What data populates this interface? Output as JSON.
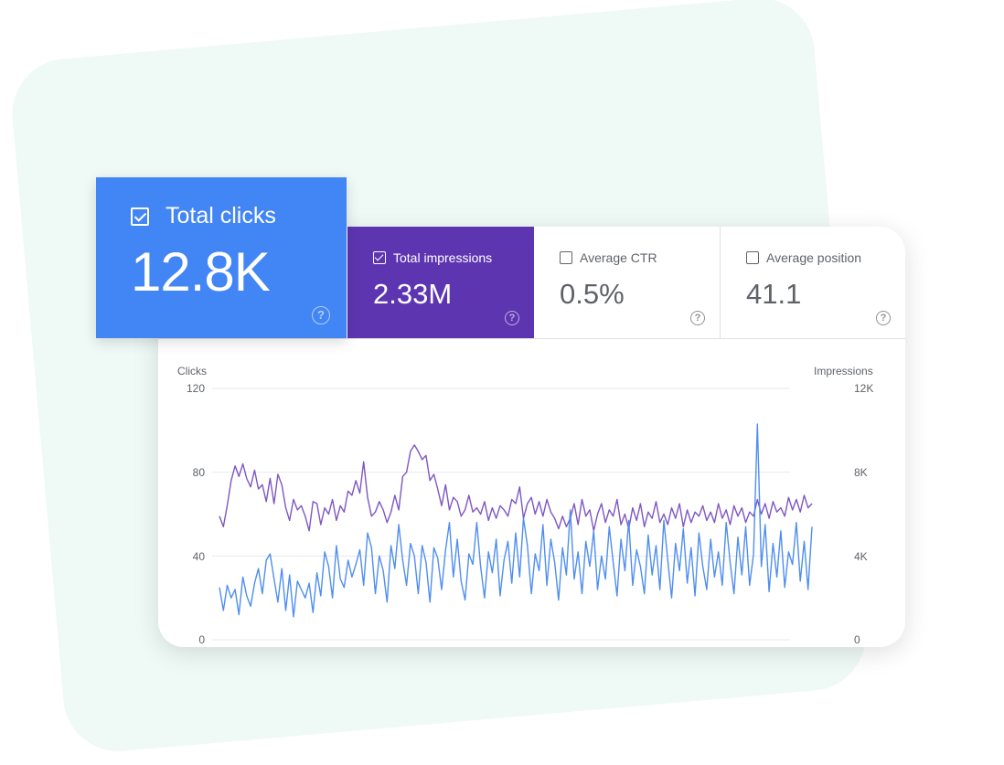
{
  "metrics": {
    "clicks": {
      "label": "Total clicks",
      "value": "12.8K",
      "checked": true,
      "color": "#4285f4"
    },
    "impressions": {
      "label": "Total impressions",
      "value": "2.33M",
      "checked": true,
      "color": "#5e35b1"
    },
    "ctr": {
      "label": "Average CTR",
      "value": "0.5%",
      "checked": false
    },
    "position": {
      "label": "Average position",
      "value": "41.1",
      "checked": false
    },
    "help_icon": "help-circle-icon"
  },
  "chart_data": {
    "type": "line",
    "left_axis": {
      "label": "Clicks",
      "ticks": [
        "0",
        "40",
        "80",
        "120"
      ],
      "range": [
        0,
        120
      ]
    },
    "right_axis": {
      "label": "Impressions",
      "ticks": [
        "0",
        "4K",
        "8K",
        "12K"
      ],
      "range": [
        0,
        12000
      ]
    },
    "grid": true,
    "series": [
      {
        "name": "Impressions",
        "axis": "right",
        "color": "#7e57c2",
        "values": [
          5900,
          5400,
          6400,
          7600,
          8300,
          7800,
          8400,
          7700,
          7300,
          8100,
          7200,
          7400,
          6600,
          7700,
          6500,
          7900,
          7400,
          6300,
          5700,
          6700,
          6200,
          6400,
          5900,
          5200,
          6600,
          6500,
          5500,
          6300,
          6000,
          6700,
          5700,
          6400,
          6100,
          7100,
          6900,
          7600,
          7000,
          8500,
          6800,
          5900,
          6100,
          6600,
          6200,
          5600,
          6100,
          6900,
          6200,
          7800,
          8000,
          9000,
          9300,
          9000,
          8600,
          8800,
          7600,
          7900,
          7200,
          6400,
          7400,
          6200,
          6800,
          6600,
          5900,
          6200,
          6900,
          6100,
          6300,
          6000,
          6600,
          5700,
          6300,
          5800,
          6400,
          6200,
          5900,
          6700,
          6500,
          7300,
          5800,
          6500,
          6800,
          6000,
          6600,
          5900,
          6700,
          6100,
          5800,
          5300,
          5900,
          5400,
          5800,
          6500,
          5500,
          6700,
          5900,
          6200,
          5200,
          6000,
          6500,
          5600,
          6200,
          5900,
          6700,
          5500,
          6000,
          5300,
          6300,
          5700,
          6500,
          5400,
          6100,
          5800,
          6600,
          5600,
          6000,
          5500,
          6300,
          5800,
          6500,
          5400,
          6200,
          5600,
          6100,
          5900,
          6400,
          5700,
          6100,
          5600,
          6500,
          5800,
          6200,
          5500,
          6400,
          5900,
          6300,
          5600,
          6100,
          5900,
          6700,
          6000,
          6500,
          5800,
          6600,
          6100,
          6300,
          5900,
          6800,
          6200,
          6700,
          6100,
          6900,
          6300,
          6500
        ]
      },
      {
        "name": "Clicks",
        "axis": "left",
        "color": "#4f8ef0",
        "values": [
          25,
          14,
          26,
          20,
          24,
          12,
          30,
          21,
          16,
          27,
          34,
          22,
          38,
          41,
          29,
          18,
          34,
          14,
          31,
          11,
          28,
          24,
          20,
          27,
          13,
          32,
          21,
          42,
          35,
          20,
          45,
          29,
          25,
          38,
          30,
          36,
          43,
          26,
          51,
          44,
          22,
          40,
          33,
          18,
          45,
          34,
          55,
          38,
          26,
          46,
          40,
          22,
          45,
          37,
          18,
          44,
          39,
          24,
          43,
          56,
          30,
          48,
          28,
          19,
          41,
          36,
          56,
          35,
          20,
          42,
          32,
          48,
          21,
          38,
          47,
          27,
          51,
          30,
          58,
          45,
          22,
          41,
          33,
          55,
          26,
          48,
          37,
          19,
          44,
          31,
          62,
          29,
          42,
          22,
          47,
          35,
          52,
          24,
          40,
          29,
          54,
          37,
          21,
          48,
          33,
          57,
          26,
          43,
          35,
          22,
          50,
          31,
          45,
          24,
          57,
          38,
          20,
          46,
          33,
          53,
          27,
          44,
          21,
          51,
          35,
          24,
          48,
          30,
          42,
          26,
          56,
          37,
          22,
          49,
          31,
          54,
          26,
          41,
          103,
          35,
          55,
          23,
          46,
          30,
          52,
          25,
          42,
          36,
          56,
          28,
          47,
          24,
          54
        ]
      }
    ]
  }
}
